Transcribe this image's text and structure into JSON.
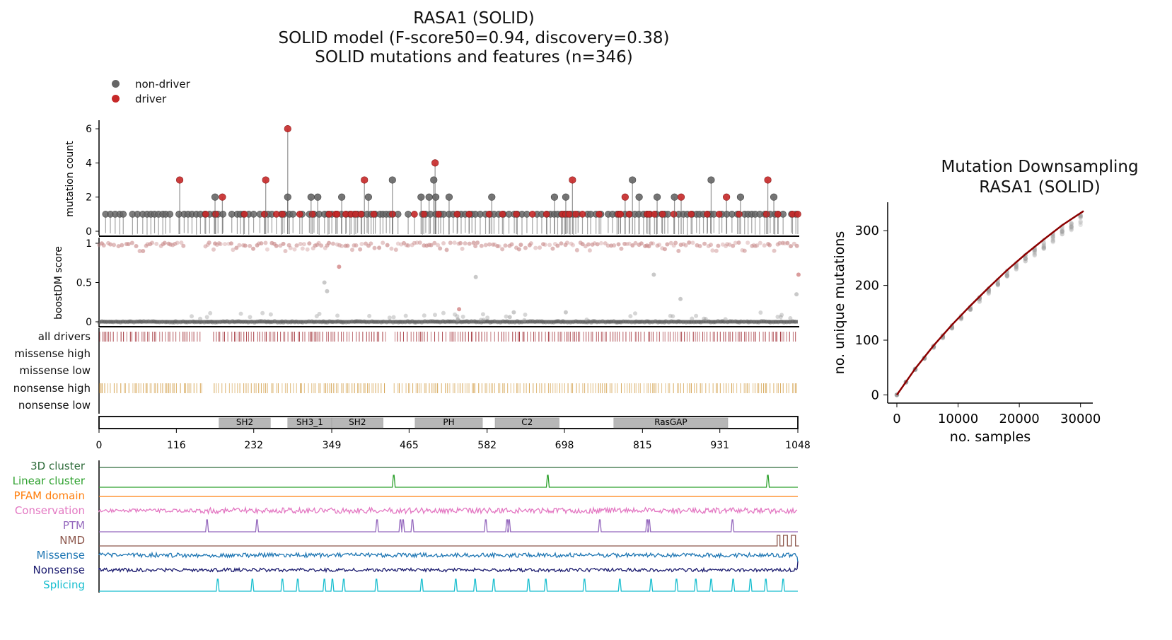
{
  "title": {
    "line1": "RASA1 (SOLID)",
    "line2": "SOLID model (F-score50=0.94, discovery=0.38)",
    "line3": "SOLID mutations and features (n=346)"
  },
  "legend": [
    {
      "label": "non-driver",
      "color": "#666666"
    },
    {
      "label": "driver",
      "color": "#c62828"
    }
  ],
  "chart_data": [
    {
      "type": "lollipop",
      "ylabel": "mutation count",
      "ylim": [
        0,
        6.5
      ],
      "yticks": [
        "0",
        "2",
        "4",
        "6"
      ],
      "xlim": [
        0,
        1048
      ],
      "tall_mutations": [
        {
          "x": 121,
          "y": 3,
          "driver": true
        },
        {
          "x": 174,
          "y": 2,
          "driver": false
        },
        {
          "x": 185,
          "y": 2,
          "driver": true
        },
        {
          "x": 250,
          "y": 3,
          "driver": true
        },
        {
          "x": 283,
          "y": 6,
          "driver": true
        },
        {
          "x": 283,
          "y": 2,
          "driver": false
        },
        {
          "x": 318,
          "y": 2,
          "driver": false
        },
        {
          "x": 328,
          "y": 2,
          "driver": false
        },
        {
          "x": 364,
          "y": 2,
          "driver": false
        },
        {
          "x": 398,
          "y": 3,
          "driver": true
        },
        {
          "x": 404,
          "y": 2,
          "driver": false
        },
        {
          "x": 440,
          "y": 3,
          "driver": false
        },
        {
          "x": 483,
          "y": 2,
          "driver": false
        },
        {
          "x": 495,
          "y": 2,
          "driver": false
        },
        {
          "x": 504,
          "y": 4,
          "driver": true
        },
        {
          "x": 502,
          "y": 3,
          "driver": false
        },
        {
          "x": 505,
          "y": 2,
          "driver": false
        },
        {
          "x": 525,
          "y": 2,
          "driver": false
        },
        {
          "x": 589,
          "y": 2,
          "driver": false
        },
        {
          "x": 683,
          "y": 2,
          "driver": false
        },
        {
          "x": 700,
          "y": 2,
          "driver": false
        },
        {
          "x": 710,
          "y": 3,
          "driver": true
        },
        {
          "x": 789,
          "y": 2,
          "driver": true
        },
        {
          "x": 800,
          "y": 3,
          "driver": false
        },
        {
          "x": 810,
          "y": 2,
          "driver": false
        },
        {
          "x": 837,
          "y": 2,
          "driver": false
        },
        {
          "x": 863,
          "y": 2,
          "driver": false
        },
        {
          "x": 873,
          "y": 2,
          "driver": true
        },
        {
          "x": 918,
          "y": 3,
          "driver": false
        },
        {
          "x": 941,
          "y": 2,
          "driver": true
        },
        {
          "x": 962,
          "y": 2,
          "driver": false
        },
        {
          "x": 1003,
          "y": 3,
          "driver": true
        },
        {
          "x": 1012,
          "y": 2,
          "driver": false
        }
      ],
      "driver_count_one_positions": [
        160,
        175,
        218,
        248,
        266,
        275,
        301,
        320,
        345,
        355,
        357,
        370,
        378,
        385,
        393,
        412,
        440,
        473,
        487,
        509,
        537,
        555,
        585,
        605,
        626,
        650,
        671,
        695,
        700,
        705,
        715,
        725,
        750,
        779,
        782,
        795,
        822,
        825,
        833,
        845,
        862,
        888,
        912,
        930,
        960,
        1001,
        1018,
        1040,
        1048
      ]
    },
    {
      "type": "scatter",
      "ylabel": "boostDM score",
      "ylim": [
        0,
        1
      ],
      "yticks": [
        "0",
        "0.5",
        "1"
      ],
      "mid_points": [
        {
          "x": 342,
          "y": 0.39,
          "driver": false
        },
        {
          "x": 338,
          "y": 0.5,
          "driver": false
        },
        {
          "x": 360,
          "y": 0.7,
          "driver": true
        },
        {
          "x": 540,
          "y": 0.16,
          "driver": true
        },
        {
          "x": 565,
          "y": 0.57,
          "driver": false
        },
        {
          "x": 616,
          "y": 0.06,
          "driver": false
        },
        {
          "x": 622,
          "y": 0.12,
          "driver": false
        },
        {
          "x": 700,
          "y": 0.12,
          "driver": false
        },
        {
          "x": 832,
          "y": 0.6,
          "driver": false
        },
        {
          "x": 872,
          "y": 0.29,
          "driver": false
        },
        {
          "x": 1049,
          "y": 0.6,
          "driver": true
        },
        {
          "x": 1046,
          "y": 0.35,
          "driver": false
        }
      ]
    },
    {
      "type": "rug",
      "tracks": [
        {
          "label": "all drivers",
          "color": "#a3333a"
        },
        {
          "label": "missense high",
          "color": "#a3333a"
        },
        {
          "label": "missense low",
          "color": "#a3333a"
        },
        {
          "label": "nonsense high",
          "color": "#d3a04b"
        },
        {
          "label": "nonsense low",
          "color": "#d3a04b"
        }
      ]
    },
    {
      "type": "domains",
      "xlim": [
        0,
        1048
      ],
      "xticks": [
        "0",
        "116",
        "232",
        "349",
        "465",
        "582",
        "698",
        "815",
        "931",
        "1048"
      ],
      "domains": [
        {
          "name": "SH2",
          "start": 180,
          "end": 257
        },
        {
          "name": "SH3_1",
          "start": 283,
          "end": 349
        },
        {
          "name": "SH2",
          "start": 349,
          "end": 426
        },
        {
          "name": "PH",
          "start": 474,
          "end": 575
        },
        {
          "name": "C2",
          "start": 594,
          "end": 690
        },
        {
          "name": "RasGAP",
          "start": 772,
          "end": 943
        }
      ]
    },
    {
      "type": "line",
      "features": [
        {
          "label": "3D cluster",
          "color": "#2e6b3a",
          "kind": "flat"
        },
        {
          "label": "Linear cluster",
          "color": "#2ca02c",
          "kind": "peaks",
          "peaks": [
            442,
            673,
            1003
          ]
        },
        {
          "label": "PFAM domain",
          "color": "#ff7f0e",
          "kind": "flat"
        },
        {
          "label": "Conservation",
          "color": "#e377c2",
          "kind": "noise"
        },
        {
          "label": "PTM",
          "color": "#9467bd",
          "kind": "peaks",
          "peaks": [
            162,
            237,
            417,
            452,
            456,
            470,
            580,
            612,
            615,
            751,
            822,
            825,
            950
          ]
        },
        {
          "label": "NMD",
          "color": "#8c564b",
          "kind": "nmd"
        },
        {
          "label": "Missense",
          "color": "#1f77b4",
          "kind": "noise2"
        },
        {
          "label": "Nonsense",
          "color": "#1a1a6e",
          "kind": "noise3"
        },
        {
          "label": "Splicing",
          "color": "#17becf",
          "kind": "peaks",
          "peaks": [
            178,
            230,
            275,
            298,
            338,
            350,
            367,
            416,
            484,
            535,
            564,
            592,
            644,
            670,
            728,
            781,
            828,
            866,
            895,
            918,
            951,
            977,
            1000,
            1026
          ]
        }
      ]
    },
    {
      "type": "scatter",
      "title": "Mutation Downsampling\nRASA1 (SOLID)",
      "xlabel": "no. samples",
      "ylabel": "no. unique mutations",
      "xlim": [
        -1500,
        32000
      ],
      "ylim": [
        -15,
        352
      ],
      "xticks": [
        "0",
        "10000",
        "20000",
        "30000"
      ],
      "yticks": [
        "0",
        "100",
        "200",
        "300"
      ],
      "curve": [
        [
          0,
          0
        ],
        [
          3000,
          48
        ],
        [
          6000,
          90
        ],
        [
          9000,
          128
        ],
        [
          12000,
          163
        ],
        [
          15000,
          196
        ],
        [
          18000,
          228
        ],
        [
          21000,
          257
        ],
        [
          24000,
          284
        ],
        [
          27000,
          310
        ],
        [
          30500,
          336
        ]
      ]
    }
  ],
  "right_title": {
    "line1": "Mutation Downsampling",
    "line2": "RASA1 (SOLID)"
  }
}
